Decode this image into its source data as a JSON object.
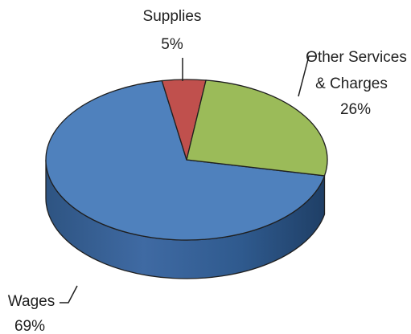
{
  "chart_data": {
    "type": "pie",
    "style": "3d",
    "categories": [
      "Wages",
      "Supplies",
      "Other Services & Charges"
    ],
    "values": [
      69,
      5,
      26
    ],
    "value_labels": [
      "69%",
      "5%",
      "26%"
    ],
    "colors": [
      "#4f81bd",
      "#c0504d",
      "#9bbb59"
    ]
  },
  "labels": {
    "wages": {
      "name": "Wages",
      "pct": "69%"
    },
    "supplies": {
      "name": "Supplies",
      "pct": "5%"
    },
    "other": {
      "name1": "Other Services",
      "name2": "& Charges",
      "pct": "26%"
    }
  }
}
